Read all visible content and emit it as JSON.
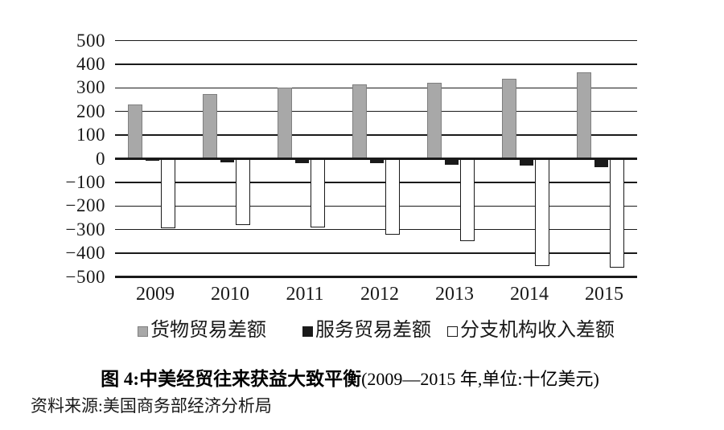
{
  "chart_data": {
    "type": "bar",
    "title": "图 4:中美经贸往来获益大致平衡",
    "title_note": "(2009—2015 年,单位:十亿美元)",
    "source": "资料来源:美国商务部经济分析局",
    "unit": "十亿美元",
    "categories": [
      "2009",
      "2010",
      "2011",
      "2012",
      "2013",
      "2014",
      "2015"
    ],
    "series": [
      {
        "key": "goods-trade-balance",
        "name": "货物贸易差额",
        "fill": "#a8a8a8",
        "border": "#7f7f7f",
        "border_px": 1,
        "values": [
          230,
          275,
          300,
          315,
          320,
          340,
          365
        ]
      },
      {
        "key": "services-trade-balance",
        "name": "服务贸易差额",
        "fill": "#1a1a1a",
        "border": "#1a1a1a",
        "border_px": 1,
        "values": [
          -10,
          -15,
          -20,
          -20,
          -25,
          -30,
          -35
        ]
      },
      {
        "key": "branch-income-balance",
        "name": "分支机构收入差额",
        "fill": "#ffffff",
        "border": "#1a1a1a",
        "border_px": 1.5,
        "values": [
          -295,
          -280,
          -290,
          -320,
          -350,
          -455,
          -460
        ]
      }
    ],
    "yticks": [
      500,
      400,
      300,
      200,
      100,
      0,
      -100,
      -200,
      -300,
      -400,
      -500
    ],
    "ylim": [
      -500,
      500
    ],
    "grid": true,
    "legend_position": "bottom",
    "axis_color": "#1a1a1a"
  }
}
